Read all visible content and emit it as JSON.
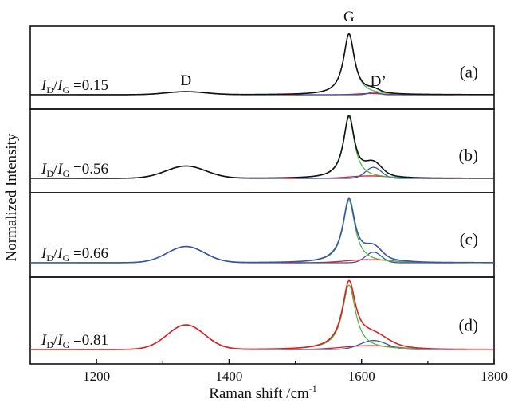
{
  "chart_data": {
    "type": "line",
    "xlabel": "Raman shift /cm",
    "xlabel_sup": "-1",
    "ylabel": "Normalized Intensity",
    "xlim": [
      1100,
      1800
    ],
    "x_ticks": [
      "1200",
      "1400",
      "1600",
      "1800"
    ],
    "x_tick_values": [
      1200,
      1400,
      1600,
      1800
    ],
    "peak_labels": {
      "D": "D",
      "G": "G",
      "Dprime": "D’"
    },
    "colors": {
      "spectrum_a": "#111111",
      "spectrum_b": "#111111",
      "spectrum_c": "#3a55a4",
      "spectrum_d": "#e02020",
      "fit_D": "#3a55a4",
      "fit_G": "#4fb74f",
      "fit_Dprime": "#3a55a4",
      "fit_extra": "#e02020"
    },
    "peak_centers_cm1": {
      "D": 1335,
      "G": 1581,
      "Dprime": 1618,
      "extra": 1612
    },
    "panels": [
      {
        "label": "(a)",
        "ratio": "0.15",
        "spectrum_color": "#111111",
        "D": {
          "height": 0.05,
          "width": 30
        },
        "G": {
          "height": 1.0,
          "width": 10
        },
        "Dprime": {
          "height": 0.04,
          "width": 8
        },
        "extra": {
          "height": 0.02,
          "width": 20
        }
      },
      {
        "label": "(b)",
        "ratio": "0.56",
        "spectrum_color": "#111111",
        "D": {
          "height": 0.2,
          "width": 30
        },
        "G": {
          "height": 1.0,
          "width": 10
        },
        "Dprime": {
          "height": 0.18,
          "width": 12
        },
        "extra": {
          "height": 0.04,
          "width": 30
        }
      },
      {
        "label": "(c)",
        "ratio": "0.66",
        "spectrum_color": "#3a55a4",
        "D": {
          "height": 0.26,
          "width": 28
        },
        "G": {
          "height": 1.0,
          "width": 11
        },
        "Dprime": {
          "height": 0.17,
          "width": 12
        },
        "extra": {
          "height": 0.05,
          "width": 35
        }
      },
      {
        "label": "(d)",
        "ratio": "0.81",
        "spectrum_color": "#e02020",
        "D": {
          "height": 0.38,
          "width": 28
        },
        "G": {
          "height": 1.0,
          "width": 12
        },
        "Dprime": {
          "height": 0.14,
          "width": 20
        },
        "extra": {
          "height": 0.06,
          "width": 40
        }
      }
    ]
  }
}
